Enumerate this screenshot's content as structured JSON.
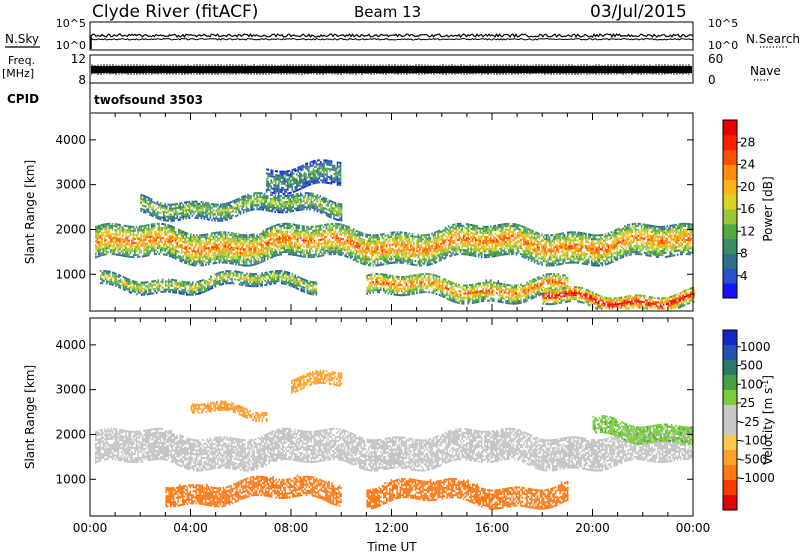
{
  "header": {
    "station": "Clyde River (fitACF)",
    "beam": "Beam 13",
    "date": "03/Jul/2015"
  },
  "status_panel": {
    "nsky_label": "N.Sky",
    "nsearch_label": "N.Search",
    "nsky_ticks": [
      "10^5",
      "10^0"
    ],
    "nsearch_ticks": [
      "10^5",
      "10^0"
    ],
    "freq_label": "Freq.",
    "freq_unit": "[MHz]",
    "freq_ticks": [
      "12",
      "8"
    ],
    "nave_label": "Nave",
    "nave_ticks": [
      "60",
      "0"
    ],
    "cpid_label": "CPID",
    "cpid_value": "twofsound 3503"
  },
  "colors": {
    "power_scale": [
      "#1414ff",
      "#2850c8",
      "#2f6e8c",
      "#3c8c64",
      "#50aa3c",
      "#96c83c",
      "#dcd228",
      "#ffb414",
      "#ff8c0a",
      "#ff5000",
      "#ff1e00",
      "#e60000"
    ],
    "velocity_scale": [
      "#e60000",
      "#ff3c00",
      "#ff7814",
      "#ffa028",
      "#ffc850",
      "#c8c8c8",
      "#c8c8c8",
      "#7acc3c",
      "#46a046",
      "#2a7a6a",
      "#2850b4",
      "#1428c8"
    ],
    "ground_scatter": "#c4c4c4"
  },
  "chart_data": [
    {
      "type": "heatmap",
      "title": "",
      "xlabel": "",
      "ylabel": "Slant Range [km]",
      "x_ticks": [
        "00:00",
        "04:00",
        "08:00",
        "12:00",
        "16:00",
        "20:00",
        "00:00"
      ],
      "x_range_hours": [
        0,
        24
      ],
      "y_ticks": [
        1000,
        2000,
        3000,
        4000
      ],
      "ylim": [
        180,
        4600
      ],
      "colorbar": {
        "label": "Power [dB]",
        "ticks": [
          4,
          8,
          12,
          16,
          20,
          24,
          28
        ],
        "range": [
          0,
          32
        ]
      },
      "echo_bands": [
        {
          "start_h": 0.2,
          "end_h": 24,
          "range_km": [
            1300,
            2000
          ],
          "value": 22
        },
        {
          "start_h": 2.0,
          "end_h": 10,
          "range_km": [
            2300,
            2700
          ],
          "value": 14
        },
        {
          "start_h": 0.4,
          "end_h": 9,
          "range_km": [
            650,
            950
          ],
          "value": 16
        },
        {
          "start_h": 11,
          "end_h": 19,
          "range_km": [
            450,
            900
          ],
          "value": 22
        },
        {
          "start_h": 18,
          "end_h": 24,
          "range_km": [
            250,
            600
          ],
          "value": 28
        },
        {
          "start_h": 7,
          "end_h": 10,
          "range_km": [
            2900,
            3400
          ],
          "value": 10
        }
      ]
    },
    {
      "type": "heatmap",
      "title": "",
      "xlabel": "Time UT",
      "ylabel": "Slant Range [km]",
      "x_ticks": [
        "00:00",
        "04:00",
        "08:00",
        "12:00",
        "16:00",
        "20:00",
        "00:00"
      ],
      "x_range_hours": [
        0,
        24
      ],
      "y_ticks": [
        1000,
        2000,
        3000,
        4000
      ],
      "ylim": [
        180,
        4600
      ],
      "colorbar": {
        "label": "Velocity [m s^-1]",
        "ticks": [
          "1000",
          "500",
          "100",
          "25",
          "-25",
          "-100",
          "-500",
          "-1000"
        ]
      },
      "echo_bands": [
        {
          "start_h": 0.2,
          "end_h": 24,
          "range_km": [
            1300,
            2000
          ],
          "value": 0
        },
        {
          "start_h": 3,
          "end_h": 10,
          "range_km": [
            500,
            950
          ],
          "value": -200
        },
        {
          "start_h": 11,
          "end_h": 19,
          "range_km": [
            450,
            900
          ],
          "value": -300
        },
        {
          "start_h": 20,
          "end_h": 24,
          "range_km": [
            1900,
            2300
          ],
          "value": 80
        },
        {
          "start_h": 4,
          "end_h": 7,
          "range_km": [
            2400,
            2600
          ],
          "value": -80
        },
        {
          "start_h": 8,
          "end_h": 10,
          "range_km": [
            3000,
            3300
          ],
          "value": -60
        }
      ]
    }
  ]
}
